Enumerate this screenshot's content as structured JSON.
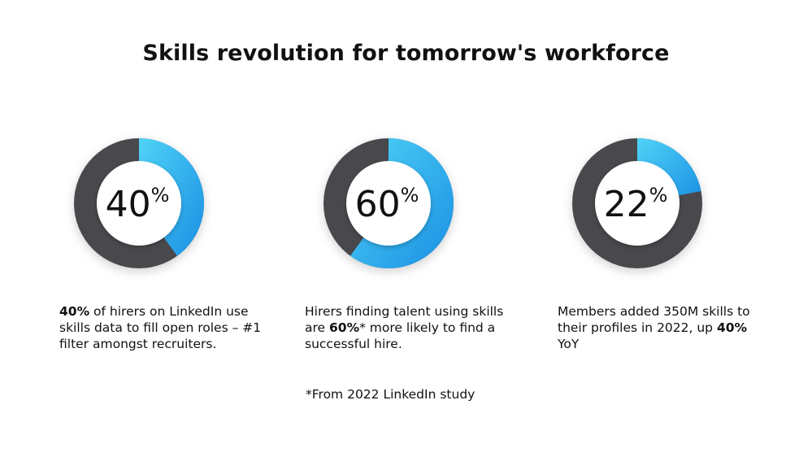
{
  "title": "Skills revolution for tomorrow's workforce",
  "chart_data": [
    {
      "type": "pie",
      "value": 40,
      "label": "40%",
      "description": [
        {
          "text": "40%",
          "bold": true
        },
        {
          "text": " of hirers on LinkedIn use skills data to fill open roles – #1 filter amongst recruiters.",
          "bold": false
        }
      ]
    },
    {
      "type": "pie",
      "value": 60,
      "label": "60%",
      "description": [
        {
          "text": "Hirers finding talent using skills are ",
          "bold": false
        },
        {
          "text": "60%",
          "bold": true
        },
        {
          "text": "* more likely to find a successful hire.",
          "bold": false
        }
      ]
    },
    {
      "type": "pie",
      "value": 22,
      "label": "22%",
      "description": [
        {
          "text": "Members added 350M skills to their profiles in 2022, up ",
          "bold": false
        },
        {
          "text": "40%",
          "bold": true
        },
        {
          "text": " YoY",
          "bold": false
        }
      ]
    }
  ],
  "footnote": "*From 2022 LinkedIn study",
  "colors": {
    "ring_track": "#4a4a4e",
    "accent_light": "#4fd3f7",
    "accent_dark": "#1a8fe3",
    "center_fill": "#ffffff",
    "text": "#111111"
  }
}
